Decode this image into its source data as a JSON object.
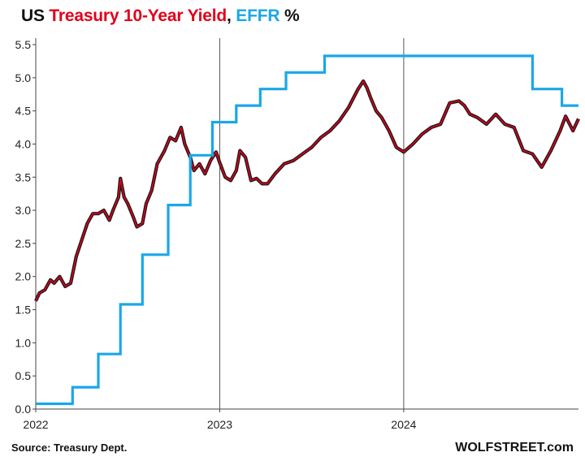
{
  "chart_data": {
    "type": "line",
    "title_parts": [
      {
        "text": "US ",
        "color": "#111111"
      },
      {
        "text": "Treasury 10-Year Yield",
        "color": "#e0001b"
      },
      {
        "text": ", ",
        "color": "#111111"
      },
      {
        "text": "EFFR",
        "color": "#1aa7e8"
      },
      {
        "text": " %",
        "color": "#111111"
      }
    ],
    "ylim": [
      0,
      5.5
    ],
    "yticks": [
      "0.0",
      "0.5",
      "1.0",
      "1.5",
      "2.0",
      "2.5",
      "3.0",
      "3.5",
      "4.0",
      "4.5",
      "5.0",
      "5.5"
    ],
    "xlim": [
      2022.0,
      2024.95
    ],
    "xticks": [
      {
        "label": "2022",
        "x": 2022.0
      },
      {
        "label": "2023",
        "x": 2023.0
      },
      {
        "label": "2024",
        "x": 2024.0
      }
    ],
    "vlines": [
      2023.0,
      2024.0
    ],
    "grid": false,
    "series": [
      {
        "key": "ten_year",
        "style": "line",
        "color": "#e0001b",
        "shadow_color": "#1a1a1a",
        "x": [
          2022.0,
          2022.02,
          2022.05,
          2022.08,
          2022.1,
          2022.13,
          2022.16,
          2022.19,
          2022.22,
          2022.25,
          2022.28,
          2022.31,
          2022.34,
          2022.37,
          2022.4,
          2022.42,
          2022.45,
          2022.46,
          2022.48,
          2022.5,
          2022.53,
          2022.55,
          2022.58,
          2022.6,
          2022.63,
          2022.66,
          2022.7,
          2022.73,
          2022.76,
          2022.79,
          2022.81,
          2022.84,
          2022.86,
          2022.89,
          2022.92,
          2022.95,
          2022.98,
          2023.0,
          2023.03,
          2023.06,
          2023.09,
          2023.11,
          2023.14,
          2023.17,
          2023.2,
          2023.23,
          2023.26,
          2023.3,
          2023.35,
          2023.4,
          2023.45,
          2023.5,
          2023.55,
          2023.6,
          2023.65,
          2023.7,
          2023.75,
          2023.78,
          2023.8,
          2023.82,
          2023.85,
          2023.88,
          2023.92,
          2023.96,
          2024.0,
          2024.05,
          2024.1,
          2024.15,
          2024.2,
          2024.25,
          2024.3,
          2024.33,
          2024.36,
          2024.4,
          2024.45,
          2024.5,
          2024.55,
          2024.6,
          2024.65,
          2024.7,
          2024.75,
          2024.8,
          2024.85,
          2024.88,
          2024.92,
          2024.95
        ],
        "y": [
          1.63,
          1.75,
          1.8,
          1.95,
          1.9,
          2.0,
          1.85,
          1.9,
          2.3,
          2.55,
          2.8,
          2.95,
          2.95,
          3.0,
          2.85,
          3.0,
          3.2,
          3.48,
          3.2,
          3.1,
          2.9,
          2.75,
          2.8,
          3.1,
          3.3,
          3.7,
          3.9,
          4.1,
          4.05,
          4.25,
          4.0,
          3.8,
          3.6,
          3.7,
          3.55,
          3.75,
          3.88,
          3.72,
          3.5,
          3.45,
          3.6,
          3.9,
          3.8,
          3.45,
          3.48,
          3.4,
          3.4,
          3.55,
          3.7,
          3.75,
          3.85,
          3.95,
          4.1,
          4.2,
          4.35,
          4.55,
          4.82,
          4.95,
          4.85,
          4.7,
          4.5,
          4.4,
          4.2,
          3.95,
          3.88,
          4.0,
          4.15,
          4.25,
          4.3,
          4.62,
          4.65,
          4.58,
          4.45,
          4.4,
          4.3,
          4.45,
          4.3,
          4.25,
          3.9,
          3.85,
          3.65,
          3.9,
          4.2,
          4.42,
          4.2,
          4.38
        ]
      },
      {
        "key": "effr",
        "style": "step",
        "color": "#1aa7e8",
        "x": [
          2022.0,
          2022.2,
          2022.34,
          2022.46,
          2022.58,
          2022.72,
          2022.84,
          2022.96,
          2023.09,
          2023.22,
          2023.36,
          2023.57,
          2024.7,
          2024.86,
          2024.95
        ],
        "y": [
          0.08,
          0.33,
          0.83,
          1.58,
          2.33,
          3.08,
          3.83,
          4.33,
          4.58,
          4.83,
          5.08,
          5.33,
          4.83,
          4.58,
          4.58
        ]
      }
    ]
  },
  "footer": {
    "source": "Source: Treasury Dept.",
    "brand": "WOLFSTREET.com"
  }
}
